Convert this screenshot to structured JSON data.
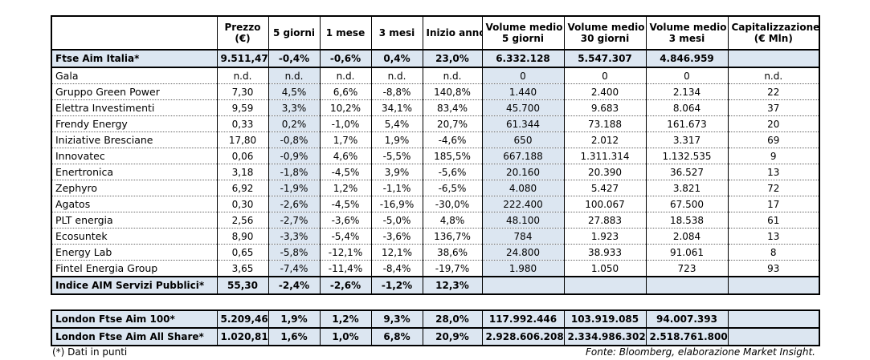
{
  "headers": [
    {
      "l1": "",
      "l2": ""
    },
    {
      "l1": "Prezzo",
      "l2": "(€)"
    },
    {
      "l1": "5 giorni",
      "l2": ""
    },
    {
      "l1": "1 mese",
      "l2": ""
    },
    {
      "l1": "3 mesi",
      "l2": ""
    },
    {
      "l1": "Inizio anno",
      "l2": ""
    },
    {
      "l1": "Volume medio",
      "l2": "5 giorni"
    },
    {
      "l1": "Volume medio",
      "l2": "30 giorni"
    },
    {
      "l1": "Volume medio",
      "l2": "3 mesi"
    },
    {
      "l1": "Capitalizzazione",
      "l2": "(€ Mln)"
    }
  ],
  "index_top": [
    "Ftse Aim Italia*",
    "9.511,47",
    "-0,4%",
    "-0,6%",
    "0,4%",
    "23,0%",
    "6.332.128",
    "5.547.307",
    "4.846.959",
    ""
  ],
  "rows": [
    [
      "Gala",
      "n.d.",
      "n.d.",
      "n.d.",
      "n.d.",
      "n.d.",
      "0",
      "0",
      "0",
      "n.d."
    ],
    [
      "Gruppo Green Power",
      "7,30",
      "4,5%",
      "6,6%",
      "-8,8%",
      "140,8%",
      "1.440",
      "2.400",
      "2.134",
      "22"
    ],
    [
      "Elettra Investimenti",
      "9,59",
      "3,3%",
      "10,2%",
      "34,1%",
      "83,4%",
      "45.700",
      "9.683",
      "8.064",
      "37"
    ],
    [
      "Frendy Energy",
      "0,33",
      "0,2%",
      "-1,0%",
      "5,4%",
      "20,7%",
      "61.344",
      "73.188",
      "161.673",
      "20"
    ],
    [
      "Iniziative Bresciane",
      "17,80",
      "-0,8%",
      "1,7%",
      "1,9%",
      "-4,6%",
      "650",
      "2.012",
      "3.317",
      "69"
    ],
    [
      "Innovatec",
      "0,06",
      "-0,9%",
      "4,6%",
      "-5,5%",
      "185,5%",
      "667.188",
      "1.311.314",
      "1.132.535",
      "9"
    ],
    [
      "Enertronica",
      "3,18",
      "-1,8%",
      "-4,5%",
      "3,9%",
      "-5,6%",
      "20.160",
      "20.390",
      "36.527",
      "13"
    ],
    [
      "Zephyro",
      "6,92",
      "-1,9%",
      "1,2%",
      "-1,1%",
      "-6,5%",
      "4.080",
      "5.427",
      "3.821",
      "72"
    ],
    [
      "Agatos",
      "0,30",
      "-2,6%",
      "-4,5%",
      "-16,9%",
      "-30,0%",
      "222.400",
      "100.067",
      "67.500",
      "17"
    ],
    [
      "PLT energia",
      "2,56",
      "-2,7%",
      "-3,6%",
      "-5,0%",
      "4,8%",
      "48.100",
      "27.883",
      "18.538",
      "61"
    ],
    [
      "Ecosuntek",
      "8,90",
      "-3,3%",
      "-5,4%",
      "-3,6%",
      "136,7%",
      "784",
      "1.923",
      "2.084",
      "13"
    ],
    [
      "Energy Lab",
      "0,65",
      "-5,8%",
      "-12,1%",
      "12,1%",
      "38,6%",
      "24.800",
      "38.933",
      "91.061",
      "8"
    ],
    [
      "Fintel Energia Group",
      "3,65",
      "-7,4%",
      "-11,4%",
      "-8,4%",
      "-19,7%",
      "1.980",
      "1.050",
      "723",
      "93"
    ]
  ],
  "index_bottom": [
    "Indice AIM Servizi Pubblici*",
    "55,30",
    "-2,4%",
    "-2,6%",
    "-1,2%",
    "12,3%",
    "",
    "",
    "",
    ""
  ],
  "london": [
    [
      "London Ftse Aim 100*",
      "5.209,46",
      "1,9%",
      "1,2%",
      "9,3%",
      "28,0%",
      "117.992.446",
      "103.919.085",
      "94.007.393",
      ""
    ],
    [
      "London Ftse Aim All Share*",
      "1.020,81",
      "1,6%",
      "1,0%",
      "6,8%",
      "20,9%",
      "2.928.606.208",
      "2.334.986.302",
      "2.518.761.800",
      ""
    ]
  ],
  "footer": {
    "note": "(*) Dati in punti",
    "source": "Fonte: Bloomberg, elaborazione Market Insight."
  }
}
